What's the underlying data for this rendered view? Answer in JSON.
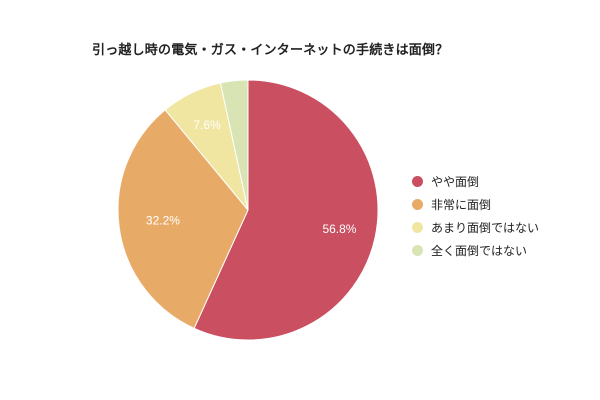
{
  "chart_data": {
    "type": "pie",
    "title": "引っ越し時の電気・ガス・インターネットの手続きは面倒？",
    "categories": [
      "やや面倒",
      "非常に面倒",
      "あまり面倒ではない",
      "全く面倒ではない"
    ],
    "values": [
      56.8,
      32.2,
      7.6,
      3.4
    ],
    "data_labels": [
      "56.8%",
      "32.2%",
      "7.6%",
      ""
    ],
    "colors": [
      "#c94f61",
      "#e8ab67",
      "#f0e6a2",
      "#d9e4b5"
    ],
    "start_angle": "top",
    "direction": "clockwise",
    "legend_position": "right"
  }
}
